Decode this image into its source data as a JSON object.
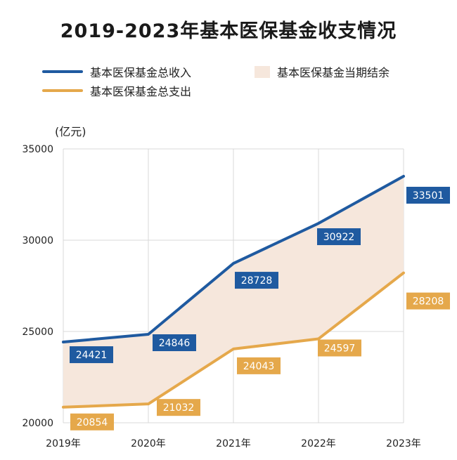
{
  "chart_data": {
    "type": "line",
    "title": "2019-2023年基本医保基金收支情况",
    "ylabel": "(亿元)",
    "categories": [
      "2019年",
      "2020年",
      "2021年",
      "2022年",
      "2023年"
    ],
    "y_ticks": [
      "20000",
      "25000",
      "30000",
      "35000"
    ],
    "ylim": [
      20000,
      35000
    ],
    "grid": true,
    "legend_placement": "top",
    "series": [
      {
        "name": "基本医保基金总收入",
        "color": "#1f5aa0",
        "values": [
          24421,
          24846,
          28728,
          30922,
          33501
        ],
        "labels": [
          "24421",
          "24846",
          "28728",
          "30922",
          "33501"
        ]
      },
      {
        "name": "基本医保基金总支出",
        "color": "#e5a84b",
        "values": [
          20854,
          21032,
          24043,
          24597,
          28208
        ],
        "labels": [
          "20854",
          "21032",
          "24043",
          "24597",
          "28208"
        ]
      }
    ],
    "area": {
      "name": "基本医保基金当期结余",
      "color": "#f6e7dc"
    }
  }
}
